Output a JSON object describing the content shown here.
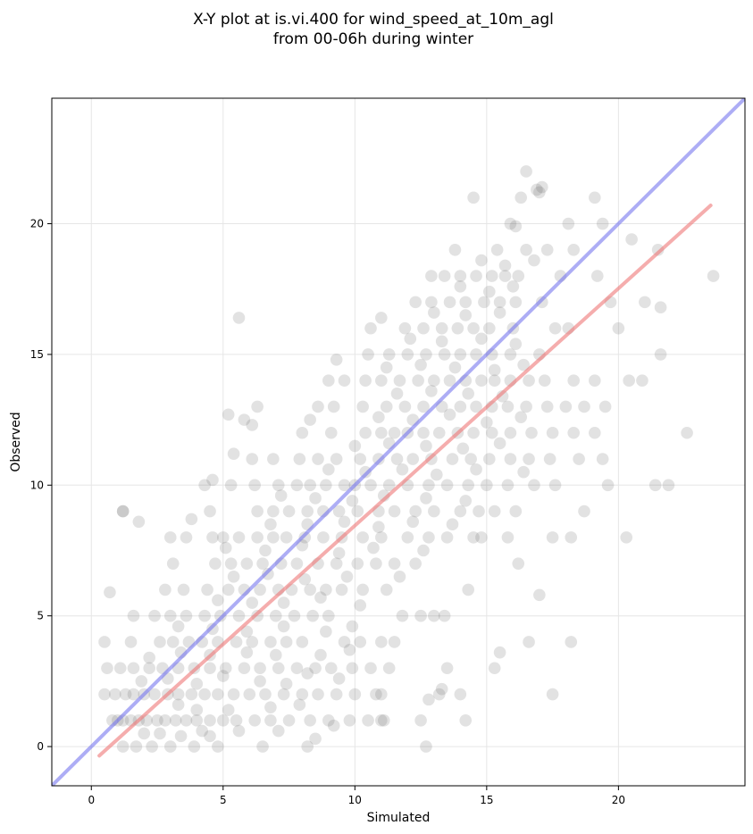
{
  "chart_data": {
    "type": "scatter",
    "title_line1": "X-Y plot at is.vi.400 for wind_speed_at_10m_agl",
    "title_line2": "from 00-06h during winter",
    "xlabel": "Simulated",
    "ylabel": "Observed",
    "xlim": [
      -1.5,
      24.8
    ],
    "ylim": [
      -1.5,
      24.8
    ],
    "xticks": [
      0,
      5,
      10,
      15,
      20
    ],
    "yticks": [
      0,
      5,
      10,
      15,
      20
    ],
    "xtick_labels": [
      "0",
      "5",
      "10",
      "15",
      "20"
    ],
    "ytick_labels": [
      "0",
      "5",
      "10",
      "15",
      "20"
    ],
    "grid": true,
    "point_color": "#555555",
    "identity_line": {
      "color": "#7777ee",
      "x": [
        -1.5,
        24.8
      ],
      "y": [
        -1.5,
        24.8
      ]
    },
    "fit_line": {
      "color": "#ee7777",
      "x": [
        0.3,
        23.5
      ],
      "y": [
        -0.35,
        20.7
      ]
    },
    "points": [
      [
        0.8,
        1
      ],
      [
        1.0,
        1
      ],
      [
        1.2,
        1
      ],
      [
        1.5,
        1
      ],
      [
        1.8,
        1
      ],
      [
        2.1,
        1
      ],
      [
        2.5,
        1
      ],
      [
        2.8,
        1
      ],
      [
        3.2,
        1
      ],
      [
        3.6,
        1
      ],
      [
        4.0,
        1
      ],
      [
        4.5,
        1
      ],
      [
        5.0,
        1
      ],
      [
        5.5,
        1
      ],
      [
        6.2,
        1
      ],
      [
        6.8,
        1
      ],
      [
        7.5,
        1
      ],
      [
        8.3,
        1
      ],
      [
        9.0,
        1
      ],
      [
        9.8,
        1
      ],
      [
        10.5,
        1
      ],
      [
        11.1,
        1
      ],
      [
        0.5,
        2
      ],
      [
        0.9,
        2
      ],
      [
        1.3,
        2
      ],
      [
        1.6,
        2
      ],
      [
        2.0,
        2
      ],
      [
        2.4,
        2
      ],
      [
        2.9,
        2
      ],
      [
        3.3,
        2
      ],
      [
        3.8,
        2
      ],
      [
        4.3,
        2
      ],
      [
        4.8,
        2
      ],
      [
        5.4,
        2
      ],
      [
        6.0,
        2
      ],
      [
        6.6,
        2
      ],
      [
        7.3,
        2
      ],
      [
        8.0,
        2
      ],
      [
        8.6,
        2
      ],
      [
        9.3,
        2
      ],
      [
        10.0,
        2
      ],
      [
        11.0,
        2
      ],
      [
        13.2,
        2
      ],
      [
        0.6,
        3
      ],
      [
        1.1,
        3
      ],
      [
        1.6,
        3
      ],
      [
        2.2,
        3
      ],
      [
        2.7,
        3
      ],
      [
        3.3,
        3
      ],
      [
        3.9,
        3
      ],
      [
        4.5,
        3
      ],
      [
        5.1,
        3
      ],
      [
        5.8,
        3
      ],
      [
        6.4,
        3
      ],
      [
        7.1,
        3
      ],
      [
        7.8,
        3
      ],
      [
        8.5,
        3
      ],
      [
        9.1,
        3
      ],
      [
        9.9,
        3
      ],
      [
        10.6,
        3
      ],
      [
        11.3,
        3
      ],
      [
        13.5,
        3
      ],
      [
        0.5,
        4
      ],
      [
        1.5,
        4
      ],
      [
        2.6,
        4
      ],
      [
        3.1,
        4
      ],
      [
        3.7,
        4
      ],
      [
        4.2,
        4
      ],
      [
        4.8,
        4
      ],
      [
        5.5,
        4
      ],
      [
        6.1,
        4
      ],
      [
        6.8,
        4
      ],
      [
        7.4,
        4
      ],
      [
        8.0,
        4
      ],
      [
        9.6,
        4
      ],
      [
        10.2,
        4
      ],
      [
        11.0,
        4
      ],
      [
        11.5,
        4
      ],
      [
        16.6,
        4
      ],
      [
        18.2,
        4
      ],
      [
        1.2,
        0
      ],
      [
        1.7,
        0
      ],
      [
        2.3,
        0
      ],
      [
        3.0,
        0
      ],
      [
        3.9,
        0
      ],
      [
        4.8,
        0
      ],
      [
        6.5,
        0
      ],
      [
        8.2,
        0
      ],
      [
        12.7,
        0
      ],
      [
        1.6,
        5
      ],
      [
        2.4,
        5
      ],
      [
        3.0,
        5
      ],
      [
        3.6,
        5
      ],
      [
        4.3,
        5
      ],
      [
        4.9,
        5
      ],
      [
        5.6,
        5
      ],
      [
        6.3,
        5
      ],
      [
        7.0,
        5
      ],
      [
        7.7,
        5
      ],
      [
        8.4,
        5
      ],
      [
        9.0,
        5
      ],
      [
        11.8,
        5
      ],
      [
        12.5,
        5
      ],
      [
        13.0,
        5
      ],
      [
        13.4,
        5
      ],
      [
        2.8,
        6
      ],
      [
        3.5,
        6
      ],
      [
        4.4,
        6
      ],
      [
        5.2,
        6
      ],
      [
        5.8,
        6
      ],
      [
        6.4,
        6
      ],
      [
        7.1,
        6
      ],
      [
        7.6,
        6
      ],
      [
        8.3,
        6
      ],
      [
        8.9,
        6
      ],
      [
        9.5,
        6
      ],
      [
        10.3,
        6
      ],
      [
        11.2,
        6
      ],
      [
        14.3,
        6
      ],
      [
        3.1,
        7
      ],
      [
        4.7,
        7
      ],
      [
        5.3,
        7
      ],
      [
        5.9,
        7
      ],
      [
        6.5,
        7
      ],
      [
        7.2,
        7
      ],
      [
        7.8,
        7
      ],
      [
        8.6,
        7
      ],
      [
        9.3,
        7
      ],
      [
        10.1,
        7
      ],
      [
        10.8,
        7
      ],
      [
        11.5,
        7
      ],
      [
        12.3,
        7
      ],
      [
        3.0,
        8
      ],
      [
        3.6,
        8
      ],
      [
        4.6,
        8
      ],
      [
        5.0,
        8
      ],
      [
        5.6,
        8
      ],
      [
        6.3,
        8
      ],
      [
        6.9,
        8
      ],
      [
        7.4,
        8
      ],
      [
        8.1,
        8
      ],
      [
        8.8,
        8
      ],
      [
        9.5,
        8
      ],
      [
        10.3,
        8
      ],
      [
        11.0,
        8
      ],
      [
        12.0,
        8
      ],
      [
        12.8,
        8
      ],
      [
        13.5,
        8
      ],
      [
        14.5,
        8
      ],
      [
        14.8,
        8
      ],
      [
        15.8,
        8
      ],
      [
        17.5,
        8
      ],
      [
        18.2,
        8
      ],
      [
        20.3,
        8
      ],
      [
        1.2,
        9
      ],
      [
        4.5,
        9
      ],
      [
        6.3,
        9
      ],
      [
        6.9,
        9
      ],
      [
        7.5,
        9
      ],
      [
        8.2,
        9
      ],
      [
        8.8,
        9
      ],
      [
        9.4,
        9
      ],
      [
        10.1,
        9
      ],
      [
        10.9,
        9
      ],
      [
        11.5,
        9
      ],
      [
        12.3,
        9
      ],
      [
        13.0,
        9
      ],
      [
        14.0,
        9
      ],
      [
        14.7,
        9
      ],
      [
        15.3,
        9
      ],
      [
        16.1,
        9
      ],
      [
        18.7,
        9
      ],
      [
        4.3,
        10
      ],
      [
        5.3,
        10
      ],
      [
        6.2,
        10
      ],
      [
        7.1,
        10
      ],
      [
        7.8,
        10
      ],
      [
        8.3,
        10
      ],
      [
        8.9,
        10
      ],
      [
        9.6,
        10
      ],
      [
        10.0,
        10
      ],
      [
        10.6,
        10
      ],
      [
        11.3,
        10
      ],
      [
        12.0,
        10
      ],
      [
        12.8,
        10
      ],
      [
        13.5,
        10
      ],
      [
        14.3,
        10
      ],
      [
        15.0,
        10
      ],
      [
        15.8,
        10
      ],
      [
        16.8,
        10
      ],
      [
        17.6,
        10
      ],
      [
        19.6,
        10
      ],
      [
        21.4,
        10
      ],
      [
        21.9,
        10
      ],
      [
        6.1,
        11
      ],
      [
        6.9,
        11
      ],
      [
        7.9,
        11
      ],
      [
        8.6,
        11
      ],
      [
        9.3,
        11
      ],
      [
        10.2,
        11
      ],
      [
        10.9,
        11
      ],
      [
        11.6,
        11
      ],
      [
        12.2,
        11
      ],
      [
        12.9,
        11
      ],
      [
        13.7,
        11
      ],
      [
        14.4,
        11
      ],
      [
        15.1,
        11
      ],
      [
        15.9,
        11
      ],
      [
        16.6,
        11
      ],
      [
        17.4,
        11
      ],
      [
        18.5,
        11
      ],
      [
        19.4,
        11
      ],
      [
        8.0,
        12
      ],
      [
        9.1,
        12
      ],
      [
        10.4,
        12
      ],
      [
        11.0,
        12
      ],
      [
        11.5,
        12
      ],
      [
        12.0,
        12
      ],
      [
        12.6,
        12
      ],
      [
        13.2,
        12
      ],
      [
        13.9,
        12
      ],
      [
        14.5,
        12
      ],
      [
        15.2,
        12
      ],
      [
        15.9,
        12
      ],
      [
        16.7,
        12
      ],
      [
        17.5,
        12
      ],
      [
        18.3,
        12
      ],
      [
        19.1,
        12
      ],
      [
        22.6,
        12
      ],
      [
        9.2,
        13
      ],
      [
        10.3,
        13
      ],
      [
        11.2,
        13
      ],
      [
        11.9,
        13
      ],
      [
        12.6,
        13
      ],
      [
        13.3,
        13
      ],
      [
        14.0,
        13
      ],
      [
        14.6,
        13
      ],
      [
        15.2,
        13
      ],
      [
        15.8,
        13
      ],
      [
        16.5,
        13
      ],
      [
        17.3,
        13
      ],
      [
        18.0,
        13
      ],
      [
        18.7,
        13
      ],
      [
        19.5,
        13
      ],
      [
        9.6,
        14
      ],
      [
        10.4,
        14
      ],
      [
        11.0,
        14
      ],
      [
        11.7,
        14
      ],
      [
        12.4,
        14
      ],
      [
        13.0,
        14
      ],
      [
        13.6,
        14
      ],
      [
        14.2,
        14
      ],
      [
        14.8,
        14
      ],
      [
        15.3,
        14
      ],
      [
        15.9,
        14
      ],
      [
        16.6,
        14
      ],
      [
        17.2,
        14
      ],
      [
        18.3,
        14
      ],
      [
        19.1,
        14
      ],
      [
        20.4,
        14
      ],
      [
        20.9,
        14
      ],
      [
        10.5,
        15
      ],
      [
        11.3,
        15
      ],
      [
        12.0,
        15
      ],
      [
        12.7,
        15
      ],
      [
        13.4,
        15
      ],
      [
        14.0,
        15
      ],
      [
        14.6,
        15
      ],
      [
        15.2,
        15
      ],
      [
        15.9,
        15
      ],
      [
        17.0,
        15
      ],
      [
        21.6,
        15
      ],
      [
        10.6,
        16
      ],
      [
        11.9,
        16
      ],
      [
        12.6,
        16
      ],
      [
        13.3,
        16
      ],
      [
        13.9,
        16
      ],
      [
        14.5,
        16
      ],
      [
        15.1,
        16
      ],
      [
        16.0,
        16
      ],
      [
        17.6,
        16
      ],
      [
        18.1,
        16
      ],
      [
        20.0,
        16
      ],
      [
        12.3,
        17
      ],
      [
        12.9,
        17
      ],
      [
        13.6,
        17
      ],
      [
        14.2,
        17
      ],
      [
        14.9,
        17
      ],
      [
        15.5,
        17
      ],
      [
        16.1,
        17
      ],
      [
        17.1,
        17
      ],
      [
        19.7,
        17
      ],
      [
        21.0,
        17
      ],
      [
        21.6,
        16.8
      ],
      [
        12.9,
        18
      ],
      [
        14.0,
        18
      ],
      [
        14.6,
        18
      ],
      [
        15.2,
        18
      ],
      [
        15.7,
        18
      ],
      [
        16.2,
        18
      ],
      [
        17.8,
        18
      ],
      [
        19.2,
        18
      ],
      [
        23.6,
        18
      ],
      [
        15.4,
        19
      ],
      [
        16.5,
        19
      ],
      [
        17.3,
        19
      ],
      [
        18.3,
        19
      ],
      [
        21.5,
        19
      ],
      [
        13.8,
        19
      ],
      [
        15.9,
        20
      ],
      [
        18.1,
        20
      ],
      [
        19.4,
        20
      ],
      [
        16.1,
        19.9
      ],
      [
        14.5,
        21
      ],
      [
        16.3,
        21
      ],
      [
        17.0,
        21.2
      ],
      [
        19.1,
        21
      ],
      [
        20.5,
        19.4
      ],
      [
        16.5,
        22
      ],
      [
        16.9,
        21.3
      ],
      [
        17.1,
        21.4
      ],
      [
        5.6,
        16.4
      ],
      [
        11.0,
        16.4
      ],
      [
        9.3,
        14.8
      ],
      [
        5.2,
        12.7
      ],
      [
        5.8,
        12.5
      ],
      [
        6.3,
        13.0
      ],
      [
        6.1,
        12.3
      ],
      [
        8.3,
        12.5
      ],
      [
        8.6,
        13.0
      ],
      [
        9.0,
        14.0
      ],
      [
        0.7,
        5.9
      ],
      [
        1.2,
        9.0
      ],
      [
        1.8,
        8.6
      ],
      [
        3.8,
        8.7
      ],
      [
        4.6,
        10.2
      ],
      [
        5.4,
        11.2
      ],
      [
        17.0,
        5.8
      ],
      [
        16.2,
        7.0
      ],
      [
        15.5,
        3.6
      ],
      [
        15.3,
        3.0
      ],
      [
        17.5,
        2.0
      ],
      [
        14.2,
        1.0
      ],
      [
        14.0,
        2.0
      ],
      [
        11.0,
        1.0
      ],
      [
        12.5,
        1.0
      ],
      [
        10.8,
        2.0
      ],
      [
        12.8,
        1.8
      ],
      [
        13.3,
        2.2
      ],
      [
        2.0,
        0.5
      ],
      [
        2.6,
        0.5
      ],
      [
        3.4,
        0.4
      ],
      [
        4.2,
        0.6
      ],
      [
        4.5,
        0.4
      ],
      [
        5.6,
        0.6
      ],
      [
        7.1,
        0.6
      ],
      [
        8.5,
        0.3
      ],
      [
        9.2,
        0.8
      ],
      [
        3.3,
        1.6
      ],
      [
        4.0,
        1.4
      ],
      [
        5.2,
        1.4
      ],
      [
        6.8,
        1.5
      ],
      [
        7.9,
        1.6
      ],
      [
        1.9,
        2.5
      ],
      [
        2.9,
        2.6
      ],
      [
        4.0,
        2.4
      ],
      [
        5.0,
        2.7
      ],
      [
        6.4,
        2.5
      ],
      [
        7.4,
        2.4
      ],
      [
        8.2,
        2.8
      ],
      [
        9.4,
        2.6
      ],
      [
        2.2,
        3.4
      ],
      [
        3.4,
        3.6
      ],
      [
        4.5,
        3.5
      ],
      [
        5.9,
        3.6
      ],
      [
        7.0,
        3.5
      ],
      [
        8.7,
        3.5
      ],
      [
        9.8,
        3.7
      ],
      [
        3.3,
        4.6
      ],
      [
        4.6,
        4.5
      ],
      [
        5.9,
        4.4
      ],
      [
        7.3,
        4.6
      ],
      [
        8.9,
        4.4
      ],
      [
        9.9,
        4.6
      ],
      [
        4.8,
        5.6
      ],
      [
        6.1,
        5.5
      ],
      [
        7.3,
        5.5
      ],
      [
        8.7,
        5.7
      ],
      [
        10.2,
        5.4
      ],
      [
        5.4,
        6.5
      ],
      [
        6.7,
        6.6
      ],
      [
        8.1,
        6.4
      ],
      [
        9.7,
        6.5
      ],
      [
        11.7,
        6.5
      ],
      [
        5.1,
        7.6
      ],
      [
        6.6,
        7.5
      ],
      [
        8.0,
        7.7
      ],
      [
        9.4,
        7.4
      ],
      [
        10.7,
        7.6
      ],
      [
        12.6,
        7.5
      ],
      [
        6.8,
        8.5
      ],
      [
        8.2,
        8.5
      ],
      [
        9.6,
        8.6
      ],
      [
        10.9,
        8.4
      ],
      [
        12.2,
        8.6
      ],
      [
        13.7,
        8.5
      ],
      [
        7.2,
        9.6
      ],
      [
        8.5,
        9.5
      ],
      [
        9.9,
        9.4
      ],
      [
        11.1,
        9.6
      ],
      [
        12.7,
        9.5
      ],
      [
        14.2,
        9.4
      ],
      [
        9.0,
        10.6
      ],
      [
        10.4,
        10.5
      ],
      [
        11.8,
        10.6
      ],
      [
        13.1,
        10.4
      ],
      [
        14.6,
        10.6
      ],
      [
        16.4,
        10.5
      ],
      [
        10.0,
        11.5
      ],
      [
        11.3,
        11.6
      ],
      [
        12.7,
        11.5
      ],
      [
        14.1,
        11.4
      ],
      [
        15.5,
        11.6
      ],
      [
        10.9,
        12.6
      ],
      [
        12.2,
        12.5
      ],
      [
        13.6,
        12.7
      ],
      [
        15.0,
        12.4
      ],
      [
        16.3,
        12.6
      ],
      [
        11.6,
        13.5
      ],
      [
        12.9,
        13.6
      ],
      [
        14.3,
        13.5
      ],
      [
        15.6,
        13.4
      ],
      [
        11.2,
        14.5
      ],
      [
        12.5,
        14.6
      ],
      [
        13.8,
        14.5
      ],
      [
        15.3,
        14.4
      ],
      [
        16.4,
        14.6
      ],
      [
        12.1,
        15.6
      ],
      [
        13.3,
        15.5
      ],
      [
        14.8,
        15.6
      ],
      [
        16.1,
        15.4
      ],
      [
        13.0,
        16.6
      ],
      [
        14.2,
        16.5
      ],
      [
        15.5,
        16.6
      ],
      [
        14.0,
        17.6
      ],
      [
        15.1,
        17.4
      ],
      [
        16.0,
        17.6
      ],
      [
        13.4,
        18.0
      ],
      [
        14.8,
        18.6
      ],
      [
        15.7,
        18.4
      ],
      [
        16.8,
        18.6
      ]
    ]
  }
}
